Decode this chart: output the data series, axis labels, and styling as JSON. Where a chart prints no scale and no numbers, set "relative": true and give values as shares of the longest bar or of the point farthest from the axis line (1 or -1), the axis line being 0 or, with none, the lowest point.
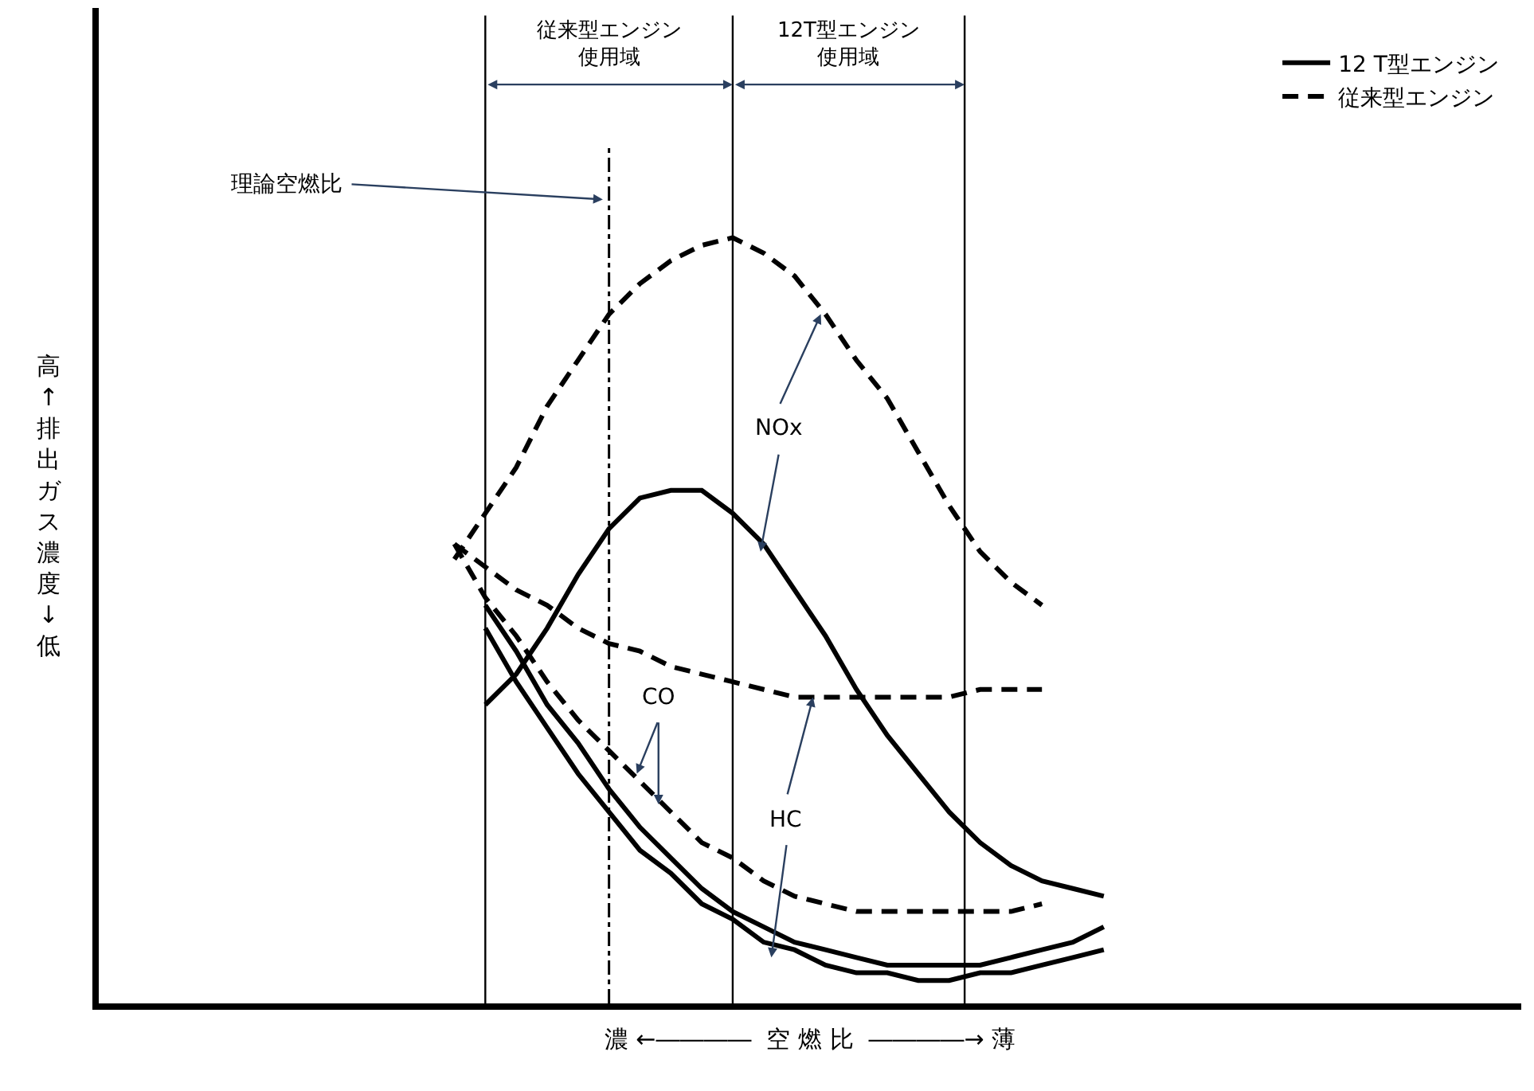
{
  "chart_data": {
    "type": "line",
    "relative": true,
    "legend": "top right",
    "marker": "none",
    "xlabel": "濃 ←――――  空 燃 比  ――――→ 薄",
    "ylabel": "高 ↑ 排出ガス濃度 ↓ 低",
    "categories": [
      null,
      null,
      null,
      null,
      null,
      null,
      null,
      null,
      null,
      null,
      null,
      null,
      null,
      null,
      null,
      null,
      null,
      null,
      null,
      null,
      null,
      null,
      null,
      null,
      null,
      null,
      null,
      null,
      null,
      null,
      null,
      null,
      null,
      null,
      null,
      null,
      null,
      null,
      null,
      null,
      null,
      null,
      null,
      null,
      null,
      null
    ],
    "series": [
      {
        "name": "12 T型エンジン",
        "color": "#000000",
        "line_style": "solid",
        "values": [
          null,
          null,
          null,
          null,
          null,
          null,
          null,
          null,
          null,
          null,
          null,
          null,
          0.39,
          0.43,
          0.49,
          0.56,
          0.62,
          0.66,
          0.67,
          0.67,
          0.64,
          0.6,
          0.54,
          0.48,
          0.41,
          0.35,
          0.3,
          0.25,
          0.21,
          0.18,
          0.16,
          0.15,
          0.14,
          null,
          null,
          null,
          null,
          null,
          null,
          null,
          null,
          null,
          null,
          null,
          null,
          null
        ]
      },
      {
        "name": "従来型エンジン",
        "color": "#000000",
        "line_style": "dashed",
        "values": [
          null,
          null,
          null,
          null,
          null,
          null,
          null,
          null,
          null,
          null,
          null,
          0.58,
          0.64,
          0.7,
          0.78,
          0.84,
          0.9,
          0.94,
          0.97,
          0.99,
          1.0,
          0.98,
          0.95,
          0.9,
          0.84,
          0.79,
          0.72,
          0.65,
          0.59,
          0.55,
          0.52,
          null,
          null,
          null,
          null,
          null,
          null,
          null,
          null,
          null,
          null,
          null,
          null,
          null,
          null,
          null
        ]
      },
      {
        "color": "#000000",
        "line_style": "dashed",
        "values": [
          null,
          null,
          null,
          null,
          null,
          null,
          null,
          null,
          null,
          null,
          null,
          0.6,
          0.57,
          0.54,
          0.52,
          0.49,
          0.47,
          0.46,
          0.44,
          0.43,
          0.42,
          0.41,
          0.4,
          0.4,
          0.4,
          0.4,
          0.4,
          0.4,
          0.41,
          0.41,
          0.41,
          null,
          null,
          null,
          null,
          null,
          null,
          null,
          null,
          null,
          null,
          null,
          null,
          null,
          null,
          null
        ]
      },
      {
        "color": "#000000",
        "line_style": "dashed",
        "values": [
          null,
          null,
          null,
          null,
          null,
          null,
          null,
          null,
          null,
          null,
          null,
          0.6,
          0.53,
          0.48,
          0.42,
          0.37,
          0.33,
          0.29,
          0.25,
          0.21,
          0.19,
          0.16,
          0.14,
          0.13,
          0.12,
          0.12,
          0.12,
          0.12,
          0.12,
          0.12,
          0.13,
          null,
          null,
          null,
          null,
          null,
          null,
          null,
          null,
          null,
          null,
          null,
          null,
          null,
          null,
          null
        ]
      },
      {
        "color": "#000000",
        "line_style": "solid",
        "values": [
          null,
          null,
          null,
          null,
          null,
          null,
          null,
          null,
          null,
          null,
          null,
          null,
          0.52,
          0.46,
          0.39,
          0.34,
          0.28,
          0.23,
          0.19,
          0.15,
          0.12,
          0.1,
          0.08,
          0.07,
          0.06,
          0.05,
          0.05,
          0.05,
          0.05,
          0.06,
          0.07,
          0.08,
          0.1,
          null,
          null,
          null,
          null,
          null,
          null,
          null,
          null,
          null,
          null,
          null,
          null,
          null
        ]
      },
      {
        "color": "#000000",
        "line_style": "solid",
        "values": [
          null,
          null,
          null,
          null,
          null,
          null,
          null,
          null,
          null,
          null,
          null,
          null,
          0.49,
          0.42,
          0.36,
          0.3,
          0.25,
          0.2,
          0.17,
          0.13,
          0.11,
          0.08,
          0.07,
          0.05,
          0.04,
          0.04,
          0.03,
          0.03,
          0.04,
          0.04,
          0.05,
          0.06,
          0.07,
          null,
          null,
          null,
          null,
          null,
          null,
          null,
          null,
          null,
          null,
          null,
          null,
          null
        ]
      }
    ],
    "annotations": [
      "理論空燃比",
      "従来型エンジン使用域",
      "12T型エンジン使用域",
      "NOx",
      "CO",
      "HC"
    ]
  }
}
